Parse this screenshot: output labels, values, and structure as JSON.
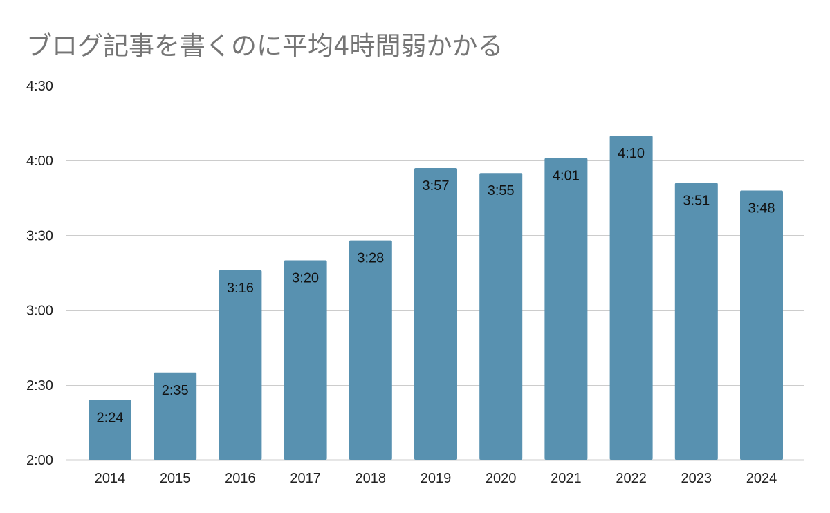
{
  "chart_data": {
    "type": "bar",
    "title": "ブログ記事を書くのに平均4時間弱かかる",
    "xlabel": "",
    "ylabel": "",
    "categories": [
      "2014",
      "2015",
      "2016",
      "2017",
      "2018",
      "2019",
      "2020",
      "2021",
      "2022",
      "2023",
      "2024"
    ],
    "values_minutes": [
      144,
      155,
      196,
      200,
      208,
      237,
      235,
      241,
      250,
      231,
      228
    ],
    "data_labels": [
      "2:24",
      "2:35",
      "3:16",
      "3:20",
      "3:28",
      "3:57",
      "3:55",
      "4:01",
      "4:10",
      "3:51",
      "3:48"
    ],
    "ylim_minutes": [
      120,
      270
    ],
    "y_ticks_minutes": [
      120,
      150,
      180,
      210,
      240,
      270
    ],
    "y_tick_labels": [
      "2:00",
      "2:30",
      "3:00",
      "3:30",
      "4:00",
      "4:30"
    ],
    "grid": true,
    "legend": "none",
    "colors": {
      "bar": "#5891b0",
      "grid": "#cccccc",
      "axis": "#999999",
      "title": "#757575"
    }
  }
}
